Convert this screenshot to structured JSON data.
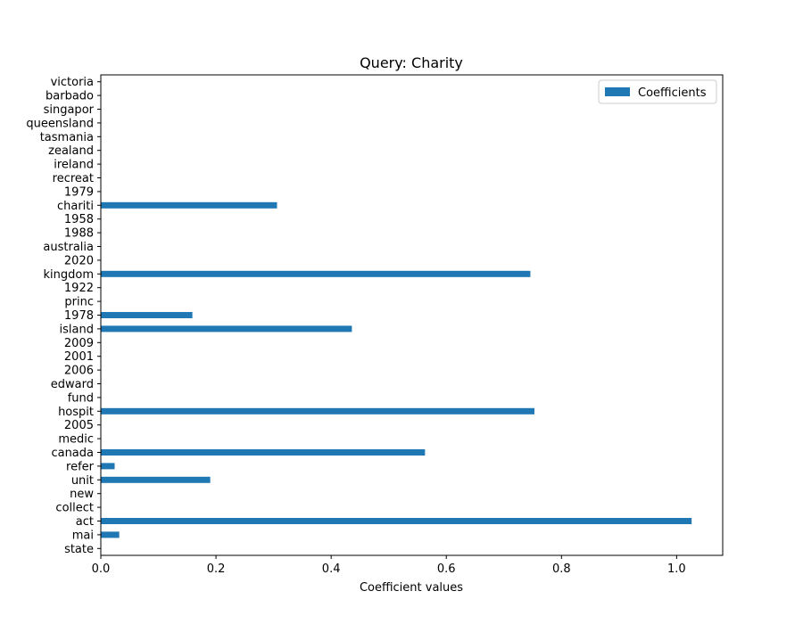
{
  "chart_data": {
    "type": "bar",
    "orientation": "horizontal",
    "title": "Query: Charity",
    "xlabel": "Coefficient values",
    "ylabel": "",
    "xlim": [
      0,
      1.08
    ],
    "xticks": [
      "0.0",
      "0.2",
      "0.4",
      "0.6",
      "0.8",
      "1.0"
    ],
    "grid": false,
    "legend_position": "top-right",
    "color": "#1f77b4",
    "categories": [
      "state",
      "mai",
      "act",
      "collect",
      "new",
      "unit",
      "refer",
      "canada",
      "medic",
      "2005",
      "hospit",
      "fund",
      "edward",
      "2006",
      "2001",
      "2009",
      "island",
      "1978",
      "princ",
      "1922",
      "kingdom",
      "2020",
      "australia",
      "1988",
      "1958",
      "chariti",
      "1979",
      "recreat",
      "ireland",
      "zealand",
      "tasmania",
      "queensland",
      "singapor",
      "barbado",
      "victoria"
    ],
    "series": [
      {
        "name": "Coefficients",
        "values": [
          0,
          0.032,
          1.026,
          0,
          0,
          0.19,
          0.024,
          0.563,
          0,
          0,
          0.753,
          0,
          0,
          0,
          0,
          0,
          0.436,
          0.159,
          0,
          0,
          0.746,
          0,
          0,
          0,
          0,
          0.306,
          0,
          0,
          0,
          0,
          0,
          0,
          0,
          0,
          0
        ]
      }
    ]
  }
}
